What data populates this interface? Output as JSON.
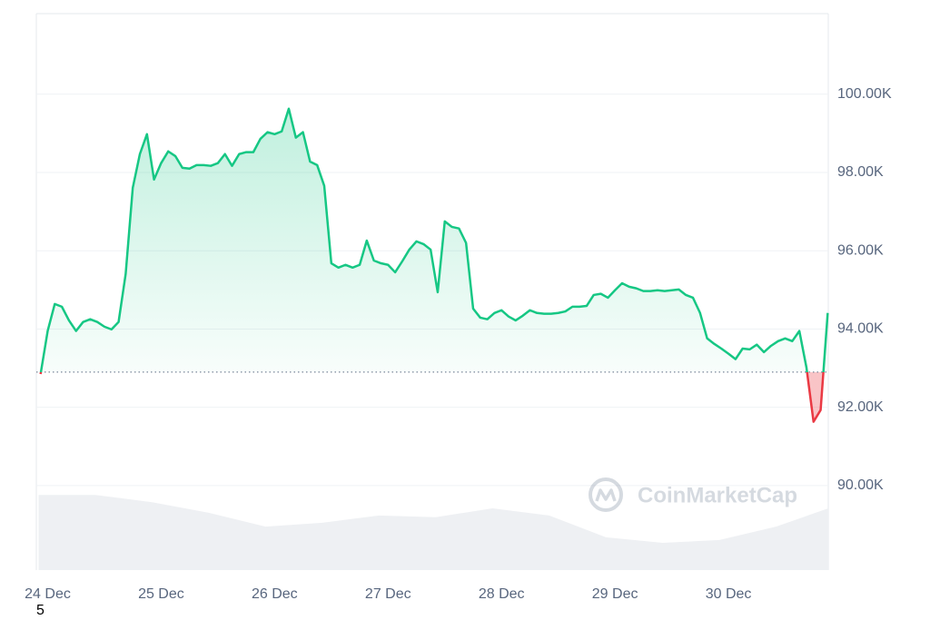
{
  "chart_data": {
    "type": "line",
    "x": [
      23.9375,
      24.0,
      24.0625,
      24.125,
      24.1875,
      24.25,
      24.3125,
      24.375,
      24.4375,
      24.5,
      24.5625,
      24.625,
      24.6875,
      24.75,
      24.8125,
      24.875,
      24.9375,
      25.0,
      25.0625,
      25.125,
      25.1875,
      25.25,
      25.3125,
      25.375,
      25.4375,
      25.5,
      25.5625,
      25.625,
      25.6875,
      25.75,
      25.8125,
      25.875,
      25.9375,
      26.0,
      26.0625,
      26.125,
      26.1875,
      26.25,
      26.3125,
      26.375,
      26.4375,
      26.5,
      26.5625,
      26.625,
      26.6875,
      26.75,
      26.8125,
      26.875,
      26.9375,
      27.0,
      27.0625,
      27.125,
      27.1875,
      27.25,
      27.3125,
      27.375,
      27.4375,
      27.5,
      27.5625,
      27.625,
      27.6875,
      27.75,
      27.8125,
      27.875,
      27.9375,
      28.0,
      28.0625,
      28.125,
      28.1875,
      28.25,
      28.3125,
      28.375,
      28.4375,
      28.5,
      28.5625,
      28.625,
      28.6875,
      28.75,
      28.8125,
      28.875,
      28.9375,
      29.0,
      29.0625,
      29.125,
      29.1875,
      29.25,
      29.3125,
      29.375,
      29.4375,
      29.5,
      29.5625,
      29.625,
      29.6875,
      29.75,
      29.8125,
      29.875,
      29.9375,
      30.0,
      30.0625,
      30.125,
      30.1875,
      30.25,
      30.3125,
      30.375,
      30.4375,
      30.5,
      30.5625,
      30.625,
      30.6875,
      30.75,
      30.8125,
      30.875
    ],
    "series": [
      {
        "color": "#16c784",
        "negative_color": "#ea3943",
        "values": [
          92850,
          93950,
          94640,
          94570,
          94220,
          93950,
          94180,
          94250,
          94180,
          94060,
          93990,
          94180,
          95410,
          97610,
          98470,
          98980,
          97820,
          98240,
          98540,
          98420,
          98120,
          98100,
          98190,
          98190,
          98170,
          98240,
          98470,
          98170,
          98470,
          98520,
          98520,
          98860,
          99030,
          98980,
          99050,
          99630,
          98890,
          99030,
          98280,
          98190,
          97660,
          95680,
          95570,
          95640,
          95570,
          95640,
          96260,
          95750,
          95680,
          95640,
          95450,
          95730,
          96030,
          96240,
          96170,
          96030,
          94940,
          96750,
          96610,
          96570,
          96200,
          94520,
          94290,
          94250,
          94410,
          94480,
          94320,
          94220,
          94340,
          94480,
          94410,
          94390,
          94390,
          94410,
          94450,
          94570,
          94570,
          94590,
          94870,
          94900,
          94800,
          94990,
          95170,
          95080,
          95040,
          94970,
          94970,
          94990,
          94970,
          94990,
          95010,
          94870,
          94800,
          94410,
          93760,
          93620,
          93500,
          93370,
          93230,
          93500,
          93480,
          93600,
          93410,
          93570,
          93690,
          93760,
          93690,
          93950,
          93020,
          91630,
          91930,
          94410
        ]
      }
    ],
    "baseline": 92900,
    "volume": {
      "color": "#eef0f3",
      "x": [
        23.92,
        24.42,
        24.92,
        25.42,
        25.92,
        26.42,
        26.92,
        27.42,
        27.92,
        28.42,
        28.92,
        29.42,
        29.92,
        30.42,
        30.88
      ],
      "values": [
        13.5,
        13.5,
        12.2,
        10.3,
        7.8,
        8.5,
        9.8,
        9.5,
        11.1,
        9.8,
        5.9,
        4.9,
        5.4,
        7.8,
        11.1
      ],
      "y2lim": [
        0,
        100
      ]
    },
    "xlim": [
      23.9,
      30.88
    ],
    "xticks": [
      {
        "value": 24,
        "label": "24 Dec"
      },
      {
        "value": 25,
        "label": "25 Dec"
      },
      {
        "value": 26,
        "label": "26 Dec"
      },
      {
        "value": 27,
        "label": "27 Dec"
      },
      {
        "value": 28,
        "label": "28 Dec"
      },
      {
        "value": 29,
        "label": "29 Dec"
      },
      {
        "value": 30,
        "label": "30 Dec"
      }
    ],
    "ylim": [
      87840,
      102060
    ],
    "yticks": [
      {
        "value": 90000,
        "label": "90.00K"
      },
      {
        "value": 92000,
        "label": "92.00K"
      },
      {
        "value": 94000,
        "label": "94.00K"
      },
      {
        "value": 96000,
        "label": "96.00K"
      },
      {
        "value": 98000,
        "label": "98.00K"
      },
      {
        "value": 100000,
        "label": "100.00K"
      }
    ],
    "grid": true,
    "watermark": "CoinMarketCap",
    "footnote": "5"
  }
}
